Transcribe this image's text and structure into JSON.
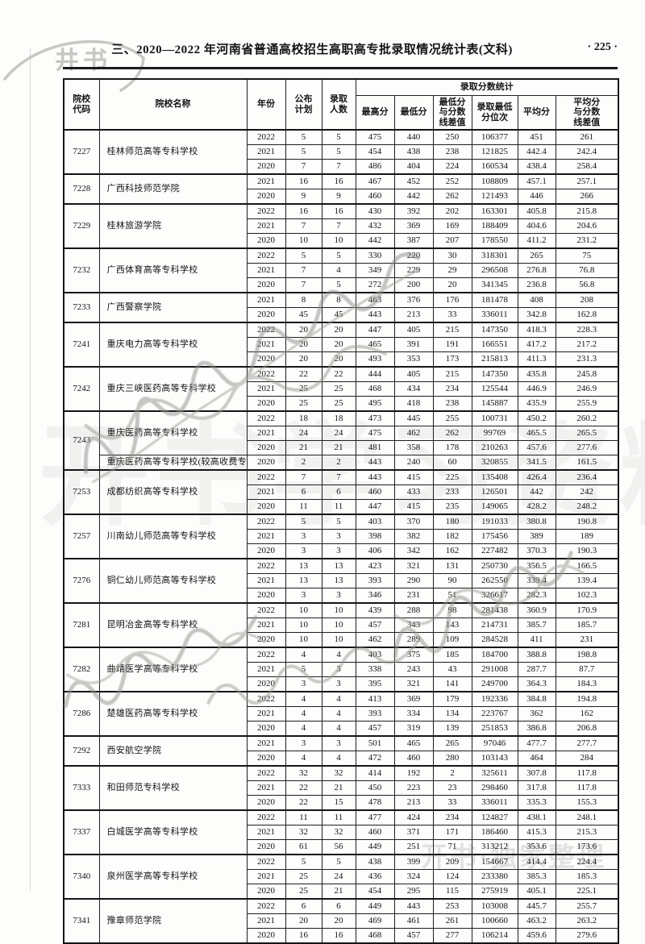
{
  "page": {
    "title": "三、2020—2022 年河南省普通高校招生高职高专批录取情况统计表(文科)",
    "page_number": "· 225 ·",
    "watermark_logo": "井书",
    "watermark_background": "开书学习资料",
    "watermark_footer": "开书·独家整理"
  },
  "table": {
    "headers": {
      "code": "院校\n代码",
      "name": "院校名称",
      "year": "年份",
      "plan": "公布\n计划",
      "admitted": "录取\n人数",
      "stats_group": "录取分数统计",
      "max": "最高分",
      "min": "最低分",
      "min_diff": "最低分\n与分数\n线差值",
      "rank": "录取最低\n分位次",
      "avg": "平均分",
      "avg_diff": "平均分\n与分数\n线差值"
    },
    "row_fields": [
      "year",
      "plan",
      "admitted",
      "max",
      "min",
      "min_diff",
      "rank",
      "avg",
      "avg_diff"
    ],
    "groups": [
      {
        "code": "7227",
        "subgroups": [
          {
            "name": "桂林师范高等专科学校",
            "rows": [
              [
                "2022",
                "5",
                "5",
                "475",
                "440",
                "250",
                "106377",
                "451",
                "261"
              ],
              [
                "2021",
                "5",
                "5",
                "454",
                "438",
                "238",
                "121825",
                "442.4",
                "242.4"
              ],
              [
                "2020",
                "7",
                "7",
                "486",
                "404",
                "224",
                "160534",
                "438.4",
                "258.4"
              ]
            ]
          }
        ]
      },
      {
        "code": "7228",
        "subgroups": [
          {
            "name": "广西科技师范学院",
            "rows": [
              [
                "2021",
                "16",
                "16",
                "467",
                "452",
                "252",
                "108809",
                "457.1",
                "257.1"
              ],
              [
                "2020",
                "9",
                "9",
                "460",
                "442",
                "262",
                "121493",
                "446",
                "266"
              ]
            ]
          }
        ]
      },
      {
        "code": "7229",
        "subgroups": [
          {
            "name": "桂林旅游学院",
            "rows": [
              [
                "2022",
                "16",
                "16",
                "430",
                "392",
                "202",
                "163301",
                "405.8",
                "215.8"
              ],
              [
                "2021",
                "7",
                "7",
                "432",
                "369",
                "169",
                "188409",
                "404.6",
                "204.6"
              ],
              [
                "2020",
                "10",
                "10",
                "442",
                "387",
                "207",
                "178550",
                "411.2",
                "231.2"
              ]
            ]
          }
        ]
      },
      {
        "code": "7232",
        "subgroups": [
          {
            "name": "广西体育高等专科学校",
            "rows": [
              [
                "2022",
                "5",
                "5",
                "330",
                "220",
                "30",
                "318301",
                "265",
                "75"
              ],
              [
                "2021",
                "7",
                "4",
                "349",
                "229",
                "29",
                "296508",
                "276.8",
                "76.8"
              ],
              [
                "2020",
                "7",
                "5",
                "272",
                "200",
                "20",
                "341345",
                "236.8",
                "56.8"
              ]
            ]
          }
        ]
      },
      {
        "code": "7233",
        "subgroups": [
          {
            "name": "广西警察学院",
            "rows": [
              [
                "2021",
                "8",
                "8",
                "463",
                "376",
                "176",
                "181478",
                "408",
                "208"
              ],
              [
                "2020",
                "45",
                "45",
                "443",
                "213",
                "33",
                "336011",
                "342.8",
                "162.8"
              ]
            ]
          }
        ]
      },
      {
        "code": "7241",
        "subgroups": [
          {
            "name": "重庆电力高等专科学校",
            "rows": [
              [
                "2022",
                "20",
                "20",
                "447",
                "405",
                "215",
                "147350",
                "418.3",
                "228.3"
              ],
              [
                "2021",
                "20",
                "20",
                "465",
                "391",
                "191",
                "166551",
                "417.2",
                "217.2"
              ],
              [
                "2020",
                "20",
                "20",
                "493",
                "353",
                "173",
                "215813",
                "411.3",
                "231.3"
              ]
            ]
          }
        ]
      },
      {
        "code": "7242",
        "subgroups": [
          {
            "name": "重庆三峡医药高等专科学校",
            "rows": [
              [
                "2022",
                "22",
                "22",
                "444",
                "405",
                "215",
                "147350",
                "435.8",
                "245.8"
              ],
              [
                "2021",
                "25",
                "25",
                "468",
                "434",
                "234",
                "125544",
                "446.9",
                "246.9"
              ],
              [
                "2020",
                "25",
                "25",
                "495",
                "418",
                "238",
                "145887",
                "435.9",
                "255.9"
              ]
            ]
          }
        ]
      },
      {
        "code": "7243",
        "subgroups": [
          {
            "name": "重庆医药高等专科学校",
            "rows": [
              [
                "2022",
                "18",
                "18",
                "473",
                "445",
                "255",
                "100731",
                "450.2",
                "260.2"
              ],
              [
                "2021",
                "24",
                "24",
                "475",
                "462",
                "262",
                "99769",
                "465.5",
                "265.5"
              ],
              [
                "2020",
                "21",
                "21",
                "481",
                "358",
                "178",
                "210263",
                "457.6",
                "277.6"
              ]
            ]
          },
          {
            "name": "重庆医药高等专科学校(较高收费专业)",
            "rows": [
              [
                "2020",
                "2",
                "2",
                "443",
                "240",
                "60",
                "320855",
                "341.5",
                "161.5"
              ]
            ]
          }
        ]
      },
      {
        "code": "7253",
        "subgroups": [
          {
            "name": "成都纺织高等专科学校",
            "rows": [
              [
                "2022",
                "7",
                "7",
                "443",
                "415",
                "225",
                "135408",
                "426.4",
                "236.4"
              ],
              [
                "2021",
                "6",
                "6",
                "460",
                "433",
                "233",
                "126501",
                "442",
                "242"
              ],
              [
                "2020",
                "11",
                "11",
                "447",
                "415",
                "235",
                "149065",
                "428.2",
                "248.2"
              ]
            ]
          }
        ]
      },
      {
        "code": "7257",
        "subgroups": [
          {
            "name": "川南幼儿师范高等专科学校",
            "rows": [
              [
                "2022",
                "5",
                "5",
                "403",
                "370",
                "180",
                "191033",
                "380.8",
                "190.8"
              ],
              [
                "2021",
                "3",
                "3",
                "398",
                "382",
                "182",
                "175456",
                "389",
                "189"
              ],
              [
                "2020",
                "3",
                "3",
                "406",
                "342",
                "162",
                "227482",
                "370.3",
                "190.3"
              ]
            ]
          }
        ]
      },
      {
        "code": "7276",
        "subgroups": [
          {
            "name": "铜仁幼儿师范高等专科学校",
            "rows": [
              [
                "2022",
                "13",
                "13",
                "423",
                "321",
                "131",
                "250730",
                "356.5",
                "166.5"
              ],
              [
                "2021",
                "13",
                "13",
                "393",
                "290",
                "90",
                "262550",
                "339.4",
                "139.4"
              ],
              [
                "2020",
                "3",
                "3",
                "346",
                "231",
                "51",
                "326617",
                "282.3",
                "102.3"
              ]
            ]
          }
        ]
      },
      {
        "code": "7281",
        "subgroups": [
          {
            "name": "昆明冶金高等专科学校",
            "rows": [
              [
                "2022",
                "10",
                "10",
                "439",
                "288",
                "98",
                "281438",
                "360.9",
                "170.9"
              ],
              [
                "2021",
                "10",
                "10",
                "457",
                "343",
                "143",
                "214731",
                "385.7",
                "185.7"
              ],
              [
                "2020",
                "10",
                "10",
                "462",
                "289",
                "109",
                "284528",
                "411",
                "231"
              ]
            ]
          }
        ]
      },
      {
        "code": "7282",
        "subgroups": [
          {
            "name": "曲靖医学高等专科学校",
            "rows": [
              [
                "2022",
                "4",
                "4",
                "403",
                "375",
                "185",
                "184700",
                "388.8",
                "198.8"
              ],
              [
                "2021",
                "5",
                "3",
                "338",
                "243",
                "43",
                "291008",
                "287.7",
                "87.7"
              ],
              [
                "2020",
                "3",
                "3",
                "395",
                "321",
                "141",
                "249700",
                "364.3",
                "184.3"
              ]
            ]
          }
        ]
      },
      {
        "code": "7286",
        "subgroups": [
          {
            "name": "楚雄医药高等专科学校",
            "rows": [
              [
                "2022",
                "4",
                "4",
                "413",
                "369",
                "179",
                "192336",
                "384.8",
                "194.8"
              ],
              [
                "2021",
                "4",
                "4",
                "393",
                "334",
                "134",
                "223767",
                "362",
                "162"
              ],
              [
                "2020",
                "4",
                "4",
                "457",
                "319",
                "139",
                "251853",
                "386.8",
                "206.8"
              ]
            ]
          }
        ]
      },
      {
        "code": "7292",
        "subgroups": [
          {
            "name": "西安航空学院",
            "rows": [
              [
                "2021",
                "3",
                "3",
                "501",
                "465",
                "265",
                "97046",
                "477.7",
                "277.7"
              ],
              [
                "2020",
                "4",
                "4",
                "472",
                "460",
                "280",
                "103143",
                "464",
                "284"
              ]
            ]
          }
        ]
      },
      {
        "code": "7333",
        "subgroups": [
          {
            "name": "和田师范专科学校",
            "rows": [
              [
                "2022",
                "32",
                "32",
                "414",
                "192",
                "2",
                "325611",
                "307.8",
                "117.8"
              ],
              [
                "2021",
                "22",
                "21",
                "450",
                "223",
                "23",
                "298460",
                "317.8",
                "117.8"
              ],
              [
                "2020",
                "22",
                "15",
                "478",
                "213",
                "33",
                "336011",
                "335.3",
                "155.3"
              ]
            ]
          }
        ]
      },
      {
        "code": "7337",
        "subgroups": [
          {
            "name": "白城医学高等专科学校",
            "rows": [
              [
                "2022",
                "11",
                "11",
                "477",
                "424",
                "234",
                "124827",
                "438.1",
                "248.1"
              ],
              [
                "2021",
                "32",
                "32",
                "460",
                "371",
                "171",
                "186460",
                "415.3",
                "215.3"
              ],
              [
                "2020",
                "61",
                "56",
                "449",
                "251",
                "71",
                "313212",
                "353.6",
                "173.6"
              ]
            ]
          }
        ]
      },
      {
        "code": "7340",
        "subgroups": [
          {
            "name": "泉州医学高等专科学校",
            "rows": [
              [
                "2022",
                "5",
                "5",
                "438",
                "399",
                "209",
                "154667",
                "414.4",
                "224.4"
              ],
              [
                "2021",
                "25",
                "24",
                "436",
                "324",
                "124",
                "233380",
                "385.3",
                "185.3"
              ],
              [
                "2020",
                "25",
                "21",
                "454",
                "295",
                "115",
                "275919",
                "405.1",
                "225.1"
              ]
            ]
          }
        ]
      },
      {
        "code": "7341",
        "subgroups": [
          {
            "name": "豫章师范学院",
            "rows": [
              [
                "2022",
                "6",
                "6",
                "449",
                "443",
                "253",
                "103008",
                "445.7",
                "255.7"
              ],
              [
                "2021",
                "20",
                "20",
                "469",
                "461",
                "261",
                "100660",
                "463.2",
                "263.2"
              ],
              [
                "2020",
                "16",
                "16",
                "468",
                "457",
                "277",
                "106214",
                "459.6",
                "279.6"
              ]
            ]
          }
        ]
      }
    ]
  }
}
